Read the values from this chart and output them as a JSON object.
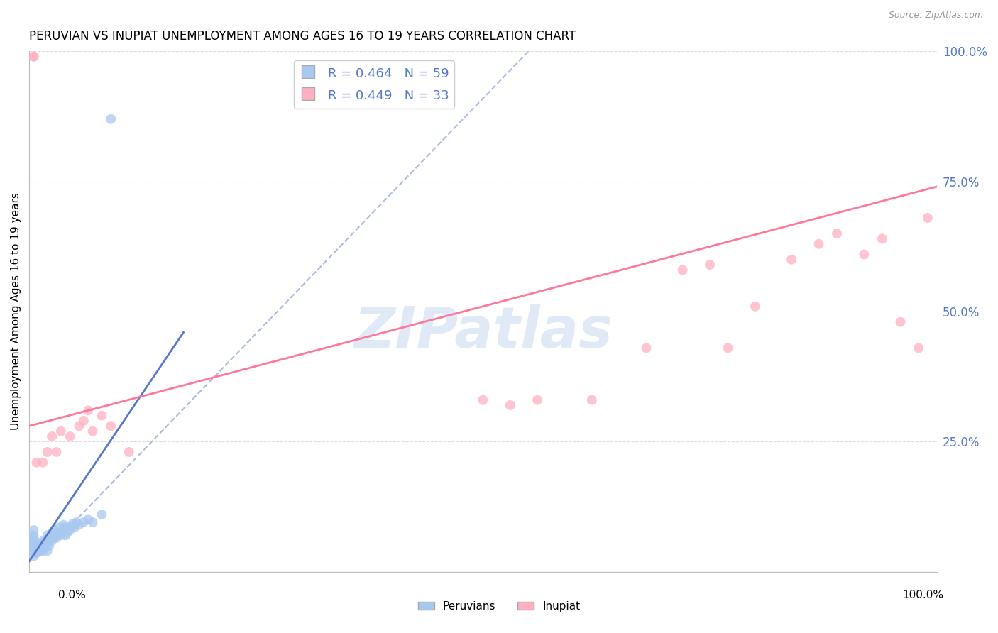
{
  "title": "PERUVIAN VS INUPIAT UNEMPLOYMENT AMONG AGES 16 TO 19 YEARS CORRELATION CHART",
  "source": "Source: ZipAtlas.com",
  "ylabel": "Unemployment Among Ages 16 to 19 years",
  "xlim": [
    0,
    1
  ],
  "ylim": [
    0,
    1
  ],
  "ytick_labels": [
    "",
    "25.0%",
    "50.0%",
    "75.0%",
    "100.0%"
  ],
  "ytick_values": [
    0.0,
    0.25,
    0.5,
    0.75,
    1.0
  ],
  "legend_R_blue": "R = 0.464",
  "legend_N_blue": "N = 59",
  "legend_R_pink": "R = 0.449",
  "legend_N_pink": "N = 33",
  "blue_scatter_color": "#A8C8F0",
  "pink_scatter_color": "#FFB0C0",
  "blue_line_color": "#5577CC",
  "pink_line_color": "#FF7799",
  "dash_line_color": "#AABBDD",
  "watermark_color": "#C8D8F0",
  "tick_color": "#5577CC",
  "grid_color": "#DDDDDD",
  "peruvian_x": [
    0.005,
    0.005,
    0.005,
    0.005,
    0.005,
    0.005,
    0.005,
    0.005,
    0.005,
    0.007,
    0.007,
    0.007,
    0.007,
    0.008,
    0.008,
    0.008,
    0.009,
    0.009,
    0.01,
    0.01,
    0.01,
    0.01,
    0.012,
    0.012,
    0.013,
    0.015,
    0.015,
    0.016,
    0.016,
    0.018,
    0.02,
    0.02,
    0.02,
    0.022,
    0.023,
    0.025,
    0.025,
    0.027,
    0.028,
    0.03,
    0.032,
    0.033,
    0.035,
    0.037,
    0.038,
    0.04,
    0.04,
    0.042,
    0.045,
    0.047,
    0.048,
    0.05,
    0.052,
    0.055,
    0.06,
    0.065,
    0.07,
    0.08,
    0.09
  ],
  "peruvian_y": [
    0.03,
    0.04,
    0.045,
    0.05,
    0.055,
    0.06,
    0.065,
    0.07,
    0.08,
    0.035,
    0.04,
    0.045,
    0.05,
    0.038,
    0.045,
    0.052,
    0.04,
    0.055,
    0.038,
    0.042,
    0.048,
    0.055,
    0.04,
    0.055,
    0.048,
    0.04,
    0.055,
    0.045,
    0.06,
    0.05,
    0.04,
    0.055,
    0.07,
    0.05,
    0.065,
    0.06,
    0.075,
    0.065,
    0.08,
    0.065,
    0.075,
    0.085,
    0.07,
    0.08,
    0.09,
    0.07,
    0.085,
    0.075,
    0.08,
    0.088,
    0.092,
    0.085,
    0.095,
    0.09,
    0.095,
    0.1,
    0.095,
    0.11,
    0.87
  ],
  "inupiat_x": [
    0.005,
    0.005,
    0.008,
    0.015,
    0.02,
    0.025,
    0.03,
    0.035,
    0.045,
    0.055,
    0.06,
    0.065,
    0.07,
    0.08,
    0.09,
    0.11,
    0.5,
    0.53,
    0.56,
    0.62,
    0.68,
    0.72,
    0.75,
    0.77,
    0.8,
    0.84,
    0.87,
    0.89,
    0.92,
    0.94,
    0.96,
    0.98,
    0.99
  ],
  "inupiat_y": [
    0.99,
    0.99,
    0.21,
    0.21,
    0.23,
    0.26,
    0.23,
    0.27,
    0.26,
    0.28,
    0.29,
    0.31,
    0.27,
    0.3,
    0.28,
    0.23,
    0.33,
    0.32,
    0.33,
    0.33,
    0.43,
    0.58,
    0.59,
    0.43,
    0.51,
    0.6,
    0.63,
    0.65,
    0.61,
    0.64,
    0.48,
    0.43,
    0.68
  ],
  "blue_line_x": [
    0.0,
    0.17
  ],
  "blue_line_y": [
    0.02,
    0.46
  ],
  "pink_line_x": [
    0.0,
    1.0
  ],
  "pink_line_y": [
    0.28,
    0.74
  ],
  "dash_line_x": [
    0.03,
    0.55
  ],
  "dash_line_y": [
    0.06,
    1.0
  ]
}
